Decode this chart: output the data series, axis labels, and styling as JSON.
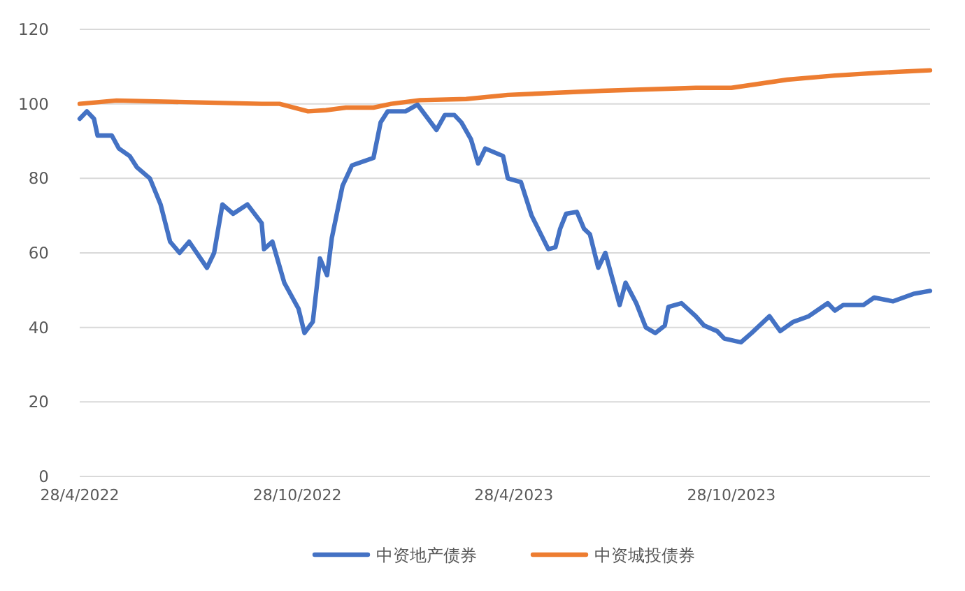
{
  "chart_data": {
    "type": "line",
    "xlim": [
      "2022-04-28",
      "2024-04-12"
    ],
    "xticks": [
      {
        "value": "2022-04-28",
        "label": "28/4/2022"
      },
      {
        "value": "2022-10-28",
        "label": "28/10/2022"
      },
      {
        "value": "2023-04-28",
        "label": "28/4/2023"
      },
      {
        "value": "2023-10-28",
        "label": "28/10/2023"
      }
    ],
    "ylim": [
      0,
      120
    ],
    "yticks": [
      0,
      20,
      40,
      60,
      80,
      100,
      120
    ],
    "grid": "y",
    "legend": "bottom",
    "marker": "none",
    "line_style": "solid",
    "series": [
      {
        "name": "中资地产债券",
        "color": "#4472c4",
        "x": [
          "2022-04-28",
          "2022-05-04",
          "2022-05-10",
          "2022-05-13",
          "2022-05-25",
          "2022-05-31",
          "2022-06-09",
          "2022-06-15",
          "2022-06-26",
          "2022-07-05",
          "2022-07-13",
          "2022-07-21",
          "2022-07-29",
          "2022-08-13",
          "2022-08-19",
          "2022-08-26",
          "2022-09-04",
          "2022-09-16",
          "2022-09-28",
          "2022-09-30",
          "2022-10-07",
          "2022-10-17",
          "2022-10-29",
          "2022-11-03",
          "2022-11-10",
          "2022-11-16",
          "2022-11-22",
          "2022-11-26",
          "2022-12-05",
          "2022-12-13",
          "2022-12-31",
          "2023-01-06",
          "2023-01-12",
          "2023-01-27",
          "2023-02-06",
          "2023-02-22",
          "2023-03-01",
          "2023-03-09",
          "2023-03-15",
          "2023-03-23",
          "2023-03-29",
          "2023-04-04",
          "2023-04-19",
          "2023-04-23",
          "2023-05-04",
          "2023-05-13",
          "2023-05-27",
          "2023-06-02",
          "2023-06-06",
          "2023-06-11",
          "2023-06-20",
          "2023-06-26",
          "2023-07-01",
          "2023-07-08",
          "2023-07-14",
          "2023-07-26",
          "2023-07-31",
          "2023-08-09",
          "2023-08-17",
          "2023-08-25",
          "2023-09-02",
          "2023-09-05",
          "2023-09-16",
          "2023-09-28",
          "2023-10-05",
          "2023-10-16",
          "2023-10-22",
          "2023-11-05",
          "2023-11-14",
          "2023-11-29",
          "2023-12-08",
          "2023-12-19",
          "2024-01-01",
          "2024-01-17",
          "2024-01-23",
          "2024-01-30",
          "2024-02-16",
          "2024-02-25",
          "2024-03-12",
          "2024-03-29",
          "2024-04-12"
        ],
        "values": [
          96,
          98,
          96,
          91.5,
          91.5,
          88,
          86,
          83,
          80,
          73,
          63,
          60,
          63,
          56,
          60,
          73,
          70.5,
          73,
          68,
          61,
          63,
          52,
          45,
          38.5,
          41.5,
          58.5,
          54,
          64,
          78,
          83.5,
          85.5,
          95,
          98,
          98,
          99.8,
          93,
          97,
          97,
          95,
          90.5,
          84,
          88,
          86,
          80,
          79,
          70,
          61,
          61.5,
          66.5,
          70.5,
          71,
          66.5,
          65,
          56,
          60,
          46,
          52,
          46.5,
          40,
          38.5,
          40.5,
          45.5,
          46.5,
          43,
          40.5,
          39,
          37,
          36,
          38.5,
          43,
          39,
          41.5,
          43,
          46.5,
          44.5,
          46,
          46,
          48,
          47,
          49,
          49.8
        ]
      },
      {
        "name": "中资城投债券",
        "color": "#ed7d31",
        "x": [
          "2022-04-28",
          "2022-05-29",
          "2022-09-28",
          "2022-10-13",
          "2022-11-06",
          "2022-11-21",
          "2022-12-08",
          "2022-12-31",
          "2023-01-15",
          "2023-02-08",
          "2023-03-19",
          "2023-04-23",
          "2023-07-11",
          "2023-09-28",
          "2023-10-28",
          "2023-12-14",
          "2024-01-23",
          "2024-03-03",
          "2024-04-12"
        ],
        "values": [
          100,
          100.9,
          100,
          100,
          98,
          98.3,
          99,
          99,
          100,
          101,
          101.3,
          102.4,
          103.5,
          104.3,
          104.3,
          106.5,
          107.6,
          108.4,
          109
        ]
      }
    ]
  }
}
